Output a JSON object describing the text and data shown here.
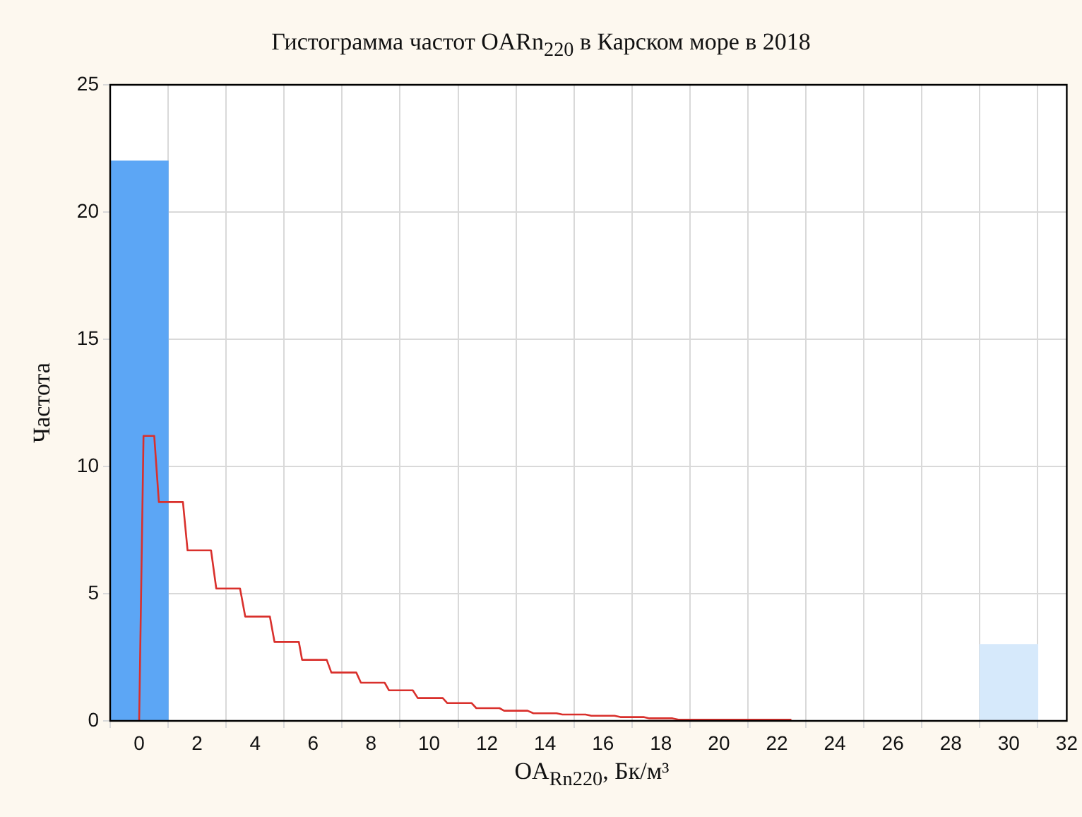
{
  "chart_data": {
    "type": "histogram",
    "title": "Гистограмма частот OARn$_{220}$ в Карском море в 2018",
    "xlabel": "OA$_{Rn220}$, Бк/м³",
    "ylabel": "Частота",
    "bins": [
      -1,
      1,
      3,
      5,
      7,
      9,
      11,
      13,
      15,
      17,
      19,
      21,
      23,
      25,
      27,
      29,
      31
    ],
    "values": [
      22,
      0,
      0,
      0,
      0,
      0,
      0,
      0,
      0,
      0,
      0,
      0,
      0,
      0,
      0,
      3
    ],
    "colors": [
      "#5ca6f5",
      "#cfe4fb",
      "#cfe4fb",
      "#cfe4fb",
      "#cfe4fb",
      "#cfe4fb",
      "#cfe4fb",
      "#cfe4fb",
      "#cfe4fb",
      "#cfe4fb",
      "#cfe4fb",
      "#cfe4fb",
      "#cfe4fb",
      "#cfe4fb",
      "#cfe4fb",
      "#d6e9fb"
    ],
    "series": [
      {
        "type": "line",
        "color": "#d9302c",
        "x": [
          0,
          0.15,
          0.52,
          0.68,
          1.51,
          1.67,
          2.48,
          2.66,
          3.48,
          3.66,
          4.51,
          4.67,
          5.51,
          5.62,
          6.47,
          6.63,
          7.49,
          7.65,
          8.47,
          8.62,
          9.44,
          9.61,
          10.47,
          10.63,
          11.47,
          11.63,
          12.43,
          12.59,
          13.4,
          13.6,
          14.4,
          14.6,
          15.4,
          15.6,
          16.4,
          16.6,
          17.4,
          17.6,
          18.4,
          18.6,
          22.5
        ],
        "values": [
          0,
          11.2,
          11.2,
          8.6,
          8.6,
          6.7,
          6.7,
          5.2,
          5.2,
          4.1,
          4.1,
          3.1,
          3.1,
          2.4,
          2.4,
          1.9,
          1.9,
          1.5,
          1.5,
          1.2,
          1.2,
          0.9,
          0.9,
          0.7,
          0.7,
          0.5,
          0.5,
          0.4,
          0.4,
          0.3,
          0.3,
          0.25,
          0.25,
          0.2,
          0.2,
          0.15,
          0.15,
          0.1,
          0.1,
          0.05,
          0.05
        ]
      }
    ],
    "xlim": [
      -1,
      32
    ],
    "xticks": [
      0,
      2,
      4,
      6,
      8,
      10,
      12,
      14,
      16,
      18,
      20,
      22,
      24,
      26,
      28,
      30,
      32
    ],
    "ylim": [
      0,
      25
    ],
    "yticks": [
      0,
      5,
      10,
      15,
      20,
      25
    ],
    "grid": true
  }
}
